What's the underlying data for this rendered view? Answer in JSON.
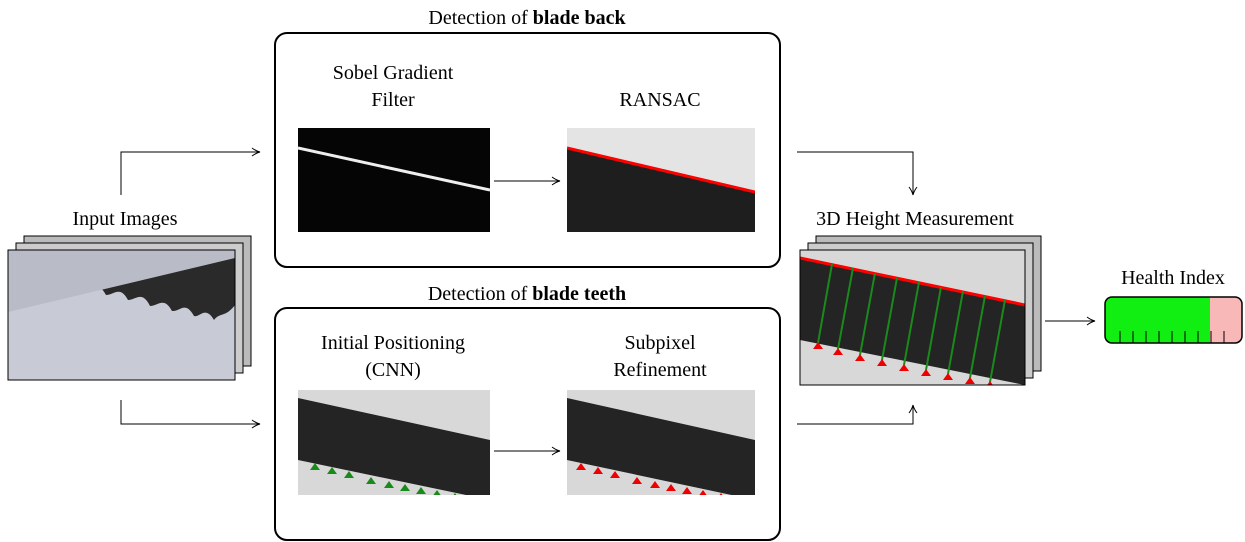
{
  "input": {
    "label": "Input Images"
  },
  "groups": [
    {
      "title": {
        "prefix": "Detection of",
        "bold": "blade back"
      },
      "steps": [
        {
          "label": [
            "Sobel Gradient",
            "Filter"
          ]
        },
        {
          "label": [
            "RANSAC"
          ]
        }
      ]
    },
    {
      "title": {
        "prefix": "Detection of",
        "bold": "blade teeth"
      },
      "steps": [
        {
          "label": [
            "Initial Positioning",
            "(CNN)"
          ]
        },
        {
          "label": [
            "Subpixel",
            "Refinement"
          ]
        }
      ]
    }
  ],
  "measurement": {
    "label": "3D Height Measurement"
  },
  "output": {
    "label": "Health Index"
  }
}
